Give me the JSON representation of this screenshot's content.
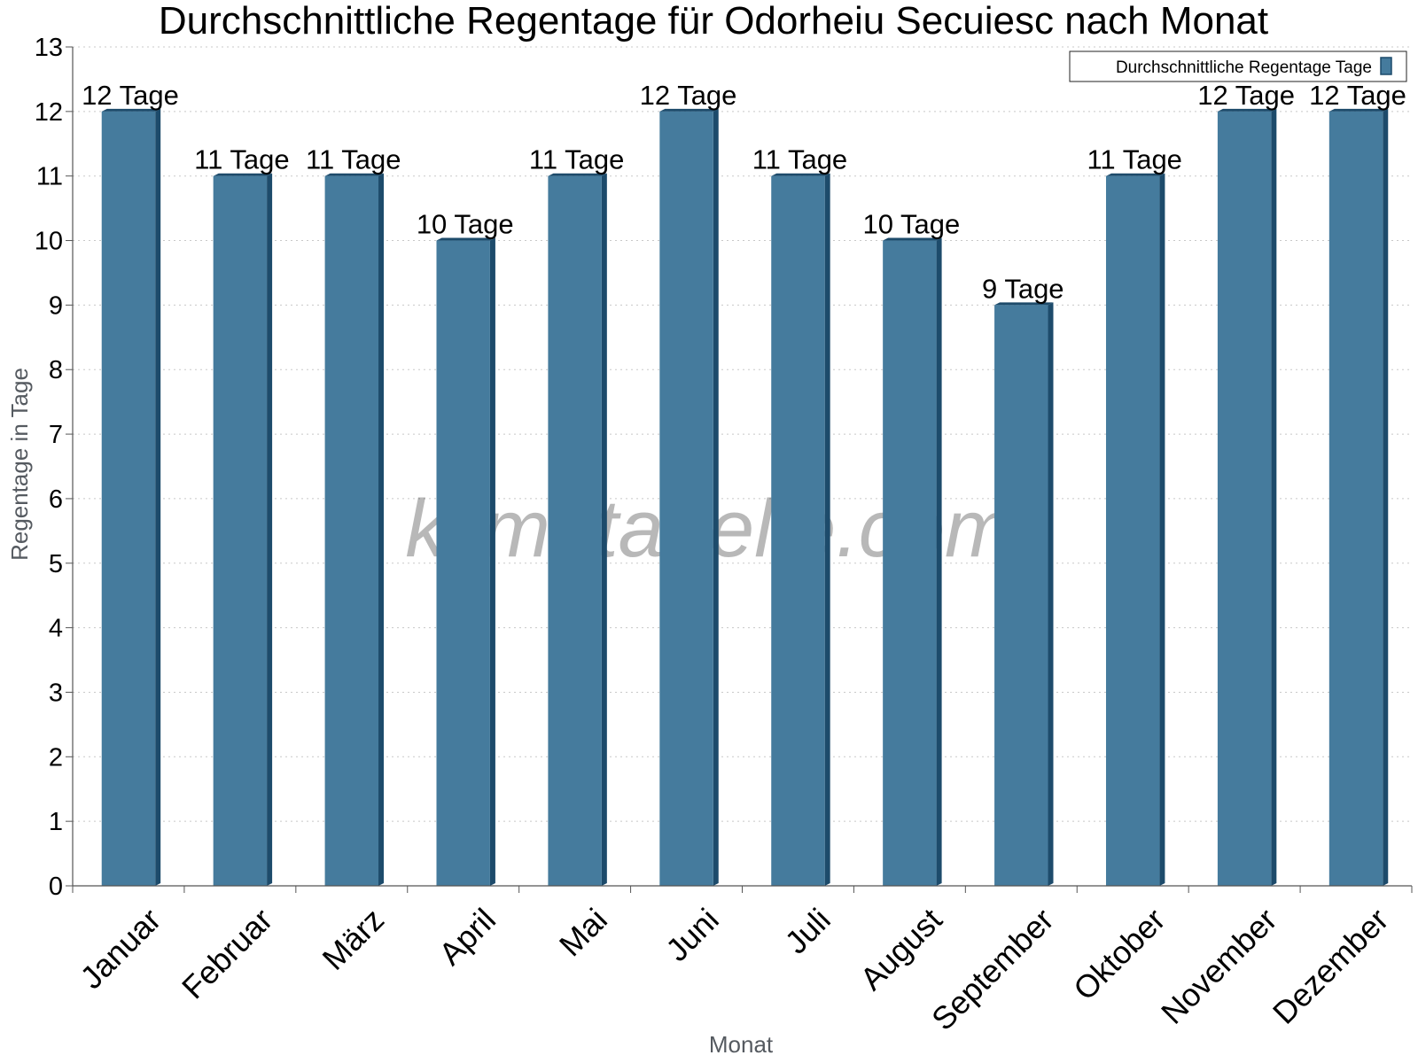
{
  "chart_data": {
    "type": "bar",
    "title": "Durchschnittliche Regentage für Odorheiu Secuiesc nach Monat",
    "xlabel": "Monat",
    "ylabel": "Regentage in Tage",
    "ylim": [
      0,
      13
    ],
    "yticks": [
      "0",
      "1",
      "2",
      "3",
      "4",
      "5",
      "6",
      "7",
      "8",
      "9",
      "10",
      "11",
      "12",
      "13"
    ],
    "grid": true,
    "legend_position": "top-right",
    "categories": [
      "Januar",
      "Februar",
      "März",
      "April",
      "Mai",
      "Juni",
      "Juli",
      "August",
      "September",
      "Oktober",
      "November",
      "Dezember"
    ],
    "series": [
      {
        "name": "Durchschnittliche Regentage Tage",
        "values": [
          12,
          11,
          11,
          10,
          11,
          12,
          11,
          10,
          9,
          11,
          12,
          12
        ],
        "labels": [
          "12 Tage",
          "11 Tage",
          "11 Tage",
          "10 Tage",
          "11 Tage",
          "12 Tage",
          "11 Tage",
          "10 Tage",
          "9 Tage",
          "11 Tage",
          "12 Tage",
          "12 Tage"
        ],
        "color": "#457b9d",
        "side_color": "#1d4b6b"
      }
    ]
  },
  "watermark": "klimatabelle.com"
}
